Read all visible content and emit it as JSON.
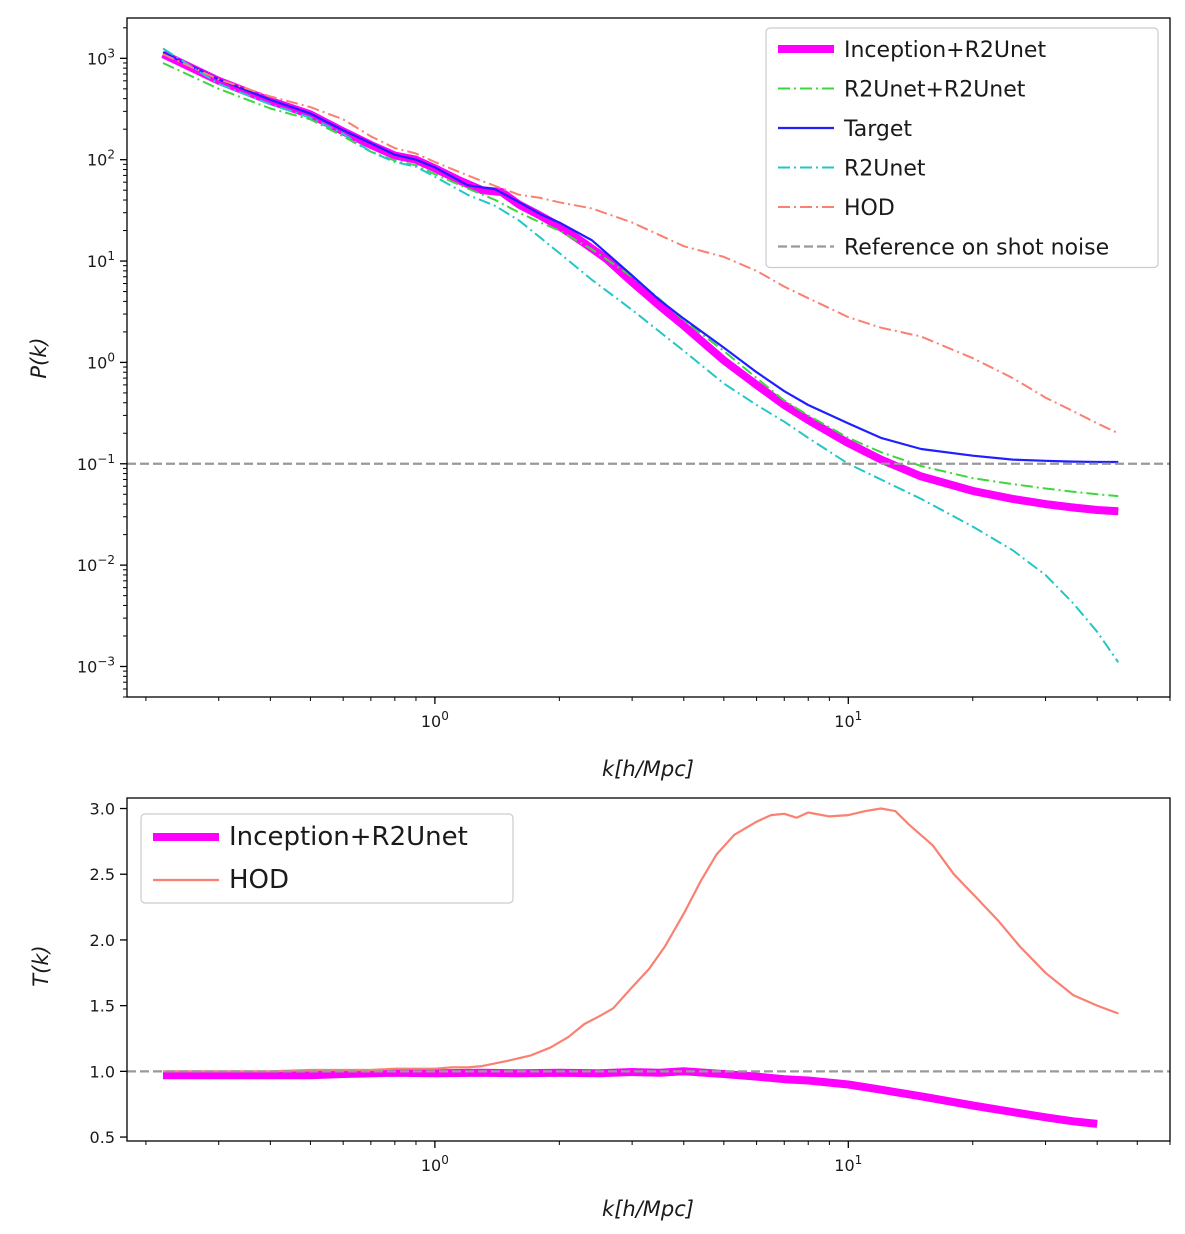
{
  "chart_data": [
    {
      "type": "line",
      "name": "power-spectrum",
      "xscale": "log",
      "yscale": "log",
      "xlabel": "k[h/Mpc]",
      "ylabel": "P(k)",
      "xlim": [
        0.18,
        60
      ],
      "ylim": [
        0.0005,
        2500
      ],
      "x_ticks": [
        1,
        10
      ],
      "x_tick_labels": [
        {
          "base": "10",
          "exp": "0"
        },
        {
          "base": "10",
          "exp": "1"
        }
      ],
      "y_ticks": [
        0.001,
        0.01,
        0.1,
        1,
        10,
        100,
        1000
      ],
      "y_tick_labels": [
        {
          "base": "10",
          "exp": "−3"
        },
        {
          "base": "10",
          "exp": "−2"
        },
        {
          "base": "10",
          "exp": "−1"
        },
        {
          "base": "10",
          "exp": "0"
        },
        {
          "base": "10",
          "exp": "1"
        },
        {
          "base": "10",
          "exp": "2"
        },
        {
          "base": "10",
          "exp": "3"
        }
      ],
      "legend_position": "top-right",
      "series": [
        {
          "name": "Inception+R2Unet",
          "color": "#ff00ff",
          "style": "solid-thick",
          "x": [
            0.22,
            0.3,
            0.4,
            0.5,
            0.6,
            0.7,
            0.8,
            0.9,
            1.0,
            1.15,
            1.3,
            1.45,
            1.6,
            1.8,
            2.0,
            2.3,
            2.6,
            3.0,
            3.5,
            4.0,
            5.0,
            6.0,
            7.0,
            8.0,
            10,
            12,
            15,
            20,
            25,
            30,
            35,
            40,
            45
          ],
          "y": [
            1100,
            600,
            380,
            280,
            190,
            140,
            110,
            100,
            82,
            62,
            50,
            48,
            36,
            28,
            22,
            15,
            10.5,
            6.2,
            3.6,
            2.3,
            1.05,
            0.6,
            0.38,
            0.27,
            0.16,
            0.11,
            0.075,
            0.054,
            0.045,
            0.04,
            0.037,
            0.035,
            0.034
          ]
        },
        {
          "name": "R2Unet+R2Unet",
          "color": "#3dd63d",
          "style": "dashdot",
          "x": [
            0.22,
            0.3,
            0.4,
            0.5,
            0.6,
            0.7,
            0.8,
            0.9,
            1.0,
            1.2,
            1.4,
            1.6,
            1.8,
            2.0,
            2.4,
            3.0,
            3.5,
            4.0,
            5.0,
            6.0,
            7.0,
            8.0,
            10,
            12,
            15,
            20,
            25,
            30,
            35,
            40,
            45
          ],
          "y": [
            900,
            500,
            320,
            250,
            170,
            120,
            98,
            88,
            72,
            52,
            40,
            30,
            24,
            20,
            13,
            7,
            4.2,
            2.6,
            1.3,
            0.7,
            0.42,
            0.3,
            0.18,
            0.13,
            0.095,
            0.072,
            0.063,
            0.057,
            0.053,
            0.05,
            0.048
          ]
        },
        {
          "name": "Target",
          "color": "#1f1fff",
          "style": "solid",
          "x": [
            0.22,
            0.3,
            0.4,
            0.5,
            0.6,
            0.7,
            0.8,
            0.9,
            1.0,
            1.2,
            1.4,
            1.6,
            1.8,
            2.0,
            2.4,
            3.0,
            3.5,
            4.0,
            5.0,
            6.0,
            7.0,
            8.0,
            10,
            12,
            15,
            20,
            25,
            30,
            35,
            40,
            45
          ],
          "y": [
            1150,
            620,
            390,
            285,
            195,
            145,
            112,
            100,
            84,
            56,
            51,
            38,
            29,
            24,
            16,
            7.2,
            4.1,
            2.7,
            1.4,
            0.8,
            0.52,
            0.38,
            0.25,
            0.18,
            0.14,
            0.12,
            0.11,
            0.107,
            0.105,
            0.104,
            0.104
          ]
        },
        {
          "name": "R2Unet",
          "color": "#22c7c7",
          "style": "dashdot",
          "x": [
            0.22,
            0.3,
            0.4,
            0.5,
            0.6,
            0.7,
            0.8,
            0.9,
            1.0,
            1.2,
            1.4,
            1.6,
            1.8,
            2.0,
            2.4,
            3.0,
            3.5,
            4.0,
            5.0,
            6.0,
            7.0,
            8.0,
            10,
            12,
            15,
            20,
            25,
            30,
            35,
            40,
            45
          ],
          "y": [
            1250,
            560,
            350,
            260,
            180,
            120,
            95,
            85,
            68,
            45,
            35,
            25,
            17,
            12,
            6.5,
            3.3,
            2.0,
            1.3,
            0.62,
            0.38,
            0.26,
            0.18,
            0.1,
            0.07,
            0.045,
            0.024,
            0.014,
            0.008,
            0.0042,
            0.0022,
            0.0011
          ]
        },
        {
          "name": "HOD",
          "color": "#fa8072",
          "style": "dashdot",
          "x": [
            0.22,
            0.3,
            0.4,
            0.5,
            0.6,
            0.7,
            0.8,
            0.9,
            1.0,
            1.2,
            1.4,
            1.6,
            1.8,
            2.0,
            2.4,
            3.0,
            3.5,
            4.0,
            5.0,
            6.0,
            7.0,
            8.0,
            10,
            12,
            15,
            20,
            25,
            30,
            35,
            40,
            45
          ],
          "y": [
            1100,
            620,
            420,
            330,
            250,
            170,
            130,
            115,
            95,
            70,
            55,
            45,
            42,
            38,
            33,
            24,
            18,
            14,
            11,
            8,
            5.6,
            4.3,
            2.8,
            2.2,
            1.8,
            1.1,
            0.7,
            0.45,
            0.33,
            0.25,
            0.2
          ]
        },
        {
          "name": "Reference on shot noise",
          "color": "#999999",
          "style": "dashed",
          "hline": 0.1
        }
      ]
    },
    {
      "type": "line",
      "name": "transfer-function",
      "xscale": "log",
      "yscale": "linear",
      "xlabel": "k[h/Mpc]",
      "ylabel": "T(k)",
      "xlim": [
        0.18,
        60
      ],
      "ylim": [
        0.47,
        3.08
      ],
      "x_ticks": [
        1,
        10
      ],
      "x_tick_labels": [
        {
          "base": "10",
          "exp": "0"
        },
        {
          "base": "10",
          "exp": "1"
        }
      ],
      "y_ticks": [
        0.5,
        1.0,
        1.5,
        2.0,
        2.5,
        3.0
      ],
      "y_tick_labels": [
        "0.5",
        "1.0",
        "1.5",
        "2.0",
        "2.5",
        "3.0"
      ],
      "legend_position": "top-left",
      "reference_line": 1.0,
      "series": [
        {
          "name": "Inception+R2Unet",
          "color": "#ff00ff",
          "style": "solid-thick",
          "x": [
            0.22,
            0.3,
            0.4,
            0.5,
            0.6,
            0.8,
            1.0,
            1.3,
            1.6,
            2.0,
            2.5,
            3.0,
            3.5,
            4.0,
            4.5,
            5.0,
            6.0,
            7.0,
            8.0,
            10,
            12,
            15,
            20,
            25,
            30,
            35,
            40
          ],
          "y": [
            0.97,
            0.97,
            0.97,
            0.97,
            0.98,
            0.99,
            0.985,
            0.99,
            0.985,
            0.99,
            0.985,
            0.995,
            0.99,
            1.0,
            0.99,
            0.98,
            0.96,
            0.94,
            0.93,
            0.9,
            0.86,
            0.81,
            0.74,
            0.69,
            0.65,
            0.62,
            0.6
          ]
        },
        {
          "name": "HOD",
          "color": "#fa8072",
          "style": "solid",
          "x": [
            0.22,
            0.3,
            0.4,
            0.5,
            0.6,
            0.7,
            0.8,
            0.9,
            1.0,
            1.1,
            1.2,
            1.3,
            1.5,
            1.7,
            1.9,
            2.1,
            2.3,
            2.5,
            2.7,
            3.0,
            3.3,
            3.6,
            4.0,
            4.4,
            4.8,
            5.3,
            6.0,
            6.5,
            7.0,
            7.5,
            8.0,
            9.0,
            10,
            11,
            12,
            13,
            14,
            16,
            18,
            20,
            23,
            26,
            30,
            35,
            40,
            45
          ],
          "y": [
            1.0,
            1.0,
            1.0,
            1.01,
            1.01,
            1.01,
            1.02,
            1.02,
            1.02,
            1.03,
            1.03,
            1.04,
            1.08,
            1.12,
            1.18,
            1.26,
            1.36,
            1.42,
            1.48,
            1.64,
            1.78,
            1.95,
            2.2,
            2.45,
            2.65,
            2.8,
            2.9,
            2.95,
            2.96,
            2.93,
            2.97,
            2.94,
            2.95,
            2.98,
            3.0,
            2.98,
            2.88,
            2.72,
            2.5,
            2.35,
            2.15,
            1.95,
            1.75,
            1.58,
            1.5,
            1.44
          ]
        },
        {
          "name": "reference",
          "color": "#999999",
          "style": "dashed",
          "hline": 1.0
        }
      ]
    }
  ]
}
